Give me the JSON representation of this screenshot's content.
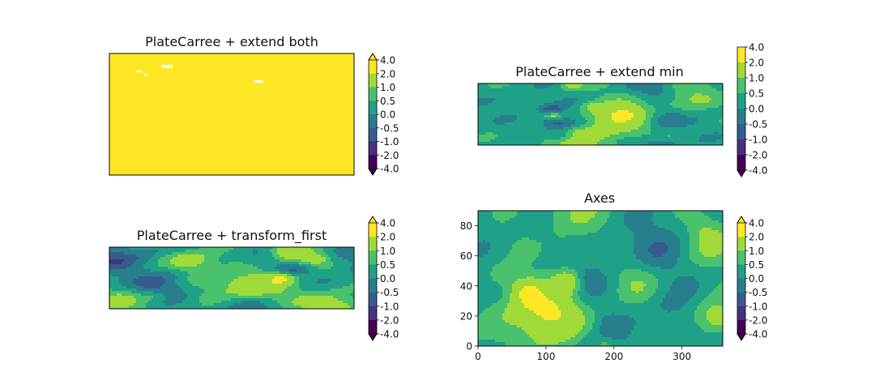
{
  "colors": {
    "levels": [
      "#440154",
      "#46327e",
      "#365c8d",
      "#277f8e",
      "#1fa187",
      "#4ac16d",
      "#a0da39",
      "#fde725"
    ],
    "under": "#440154",
    "over": "#fde725",
    "frame": "#000000"
  },
  "chart_data": [
    {
      "type": "heatmap",
      "title": "PlateCarree + extend both",
      "style": "saturated",
      "colorbar": {
        "tick_labels": [
          "4.0",
          "2.0",
          "1.0",
          "0.5",
          "0.0",
          "-0.5",
          "-1.0",
          "-2.0",
          "-4.0"
        ],
        "extend": "both"
      },
      "axes_visible": false
    },
    {
      "type": "heatmap",
      "title": "PlateCarree + extend min",
      "style": "field",
      "seed": 11,
      "colorbar": {
        "tick_labels": [
          "4.0",
          "2.0",
          "1.0",
          "0.5",
          "0.0",
          "-0.5",
          "-1.0",
          "-2.0",
          "-4.0"
        ],
        "extend": "min"
      },
      "axes_visible": false
    },
    {
      "type": "heatmap",
      "title": "PlateCarree + transform_first",
      "style": "field",
      "seed": 23,
      "colorbar": {
        "tick_labels": [
          "4.0",
          "2.0",
          "1.0",
          "0.5",
          "0.0",
          "-0.5",
          "-1.0",
          "-2.0",
          "-4.0"
        ],
        "extend": "both"
      },
      "axes_visible": false
    },
    {
      "type": "heatmap",
      "title": "Axes",
      "style": "field",
      "seed": 37,
      "colorbar": {
        "tick_labels": [
          "4.0",
          "2.0",
          "1.0",
          "0.5",
          "0.0",
          "-0.5",
          "-1.0",
          "-2.0",
          "-4.0"
        ],
        "extend": "both"
      },
      "axes_visible": true,
      "xlim": [
        0,
        360
      ],
      "ylim": [
        0,
        90
      ],
      "xticks": [
        "0",
        "100",
        "200",
        "300"
      ],
      "yticks": [
        "0",
        "20",
        "40",
        "60",
        "80"
      ]
    }
  ]
}
